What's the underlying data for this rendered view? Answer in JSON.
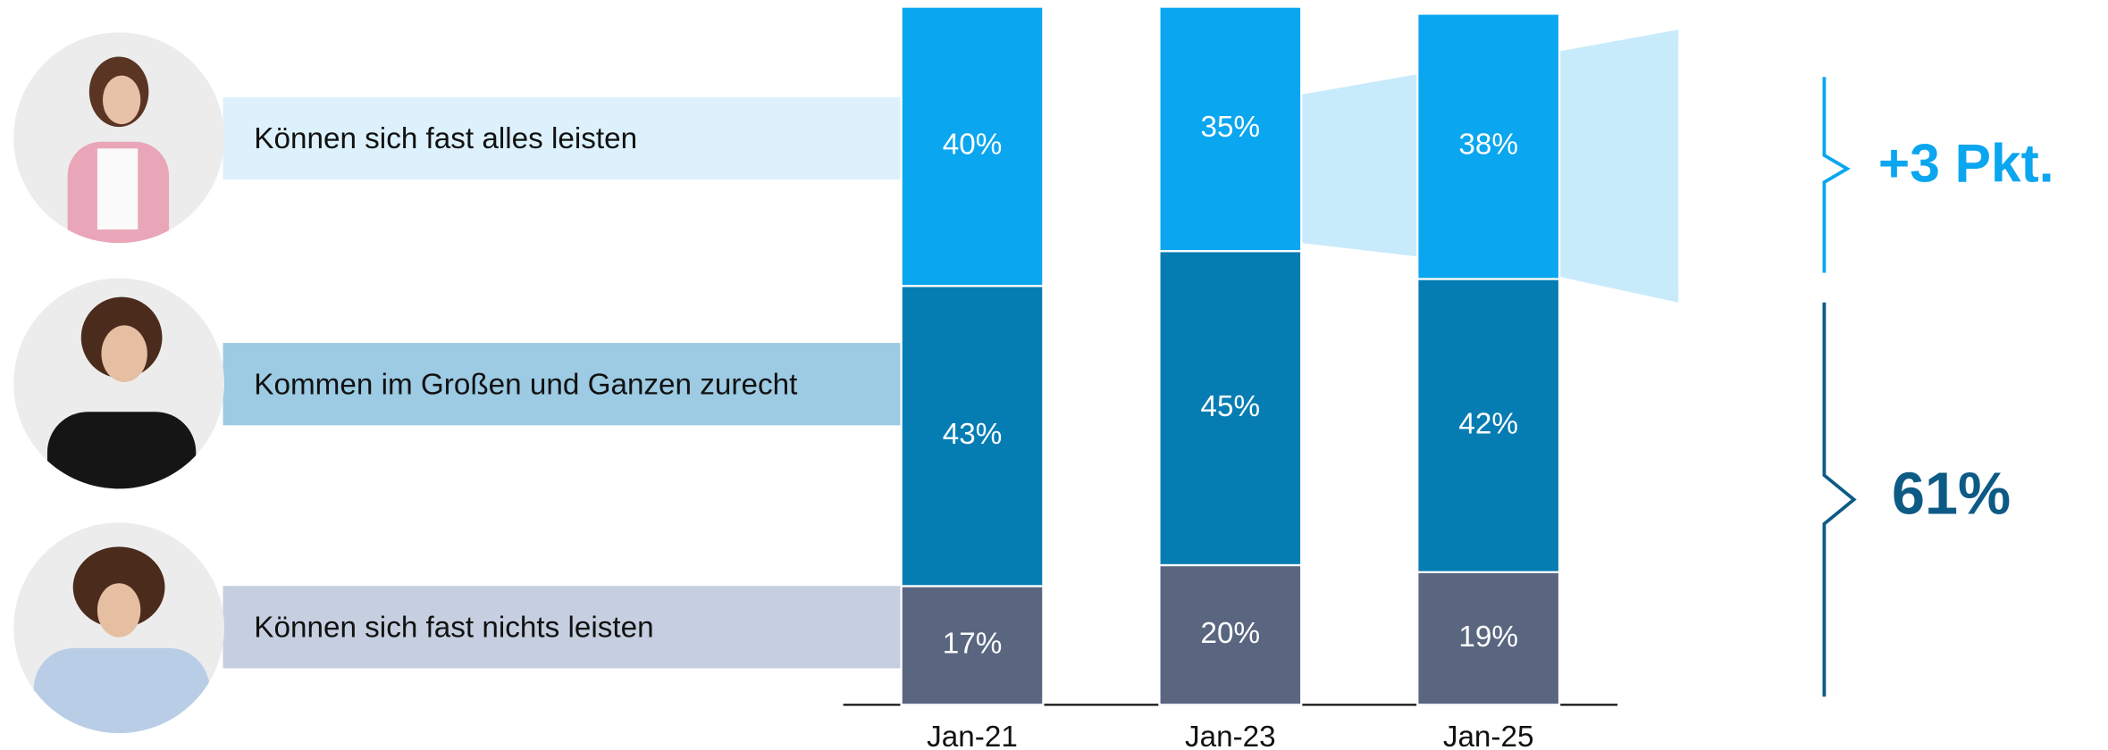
{
  "chart_data": {
    "type": "bar",
    "stacked": true,
    "categories": [
      "Jan-21",
      "Jan-23",
      "Jan-25"
    ],
    "series": [
      {
        "name": "Können sich fast nichts leisten",
        "color": "#5a6680",
        "values": [
          17,
          20,
          19
        ],
        "value_labels": [
          "17%",
          "20%",
          "19%"
        ]
      },
      {
        "name": "Kommen im Großen und Ganzen zurecht",
        "color": "#057db3",
        "values": [
          43,
          45,
          42
        ],
        "value_labels": [
          "43%",
          "45%",
          "42%"
        ]
      },
      {
        "name": "Können sich fast alles leisten",
        "color": "#0aa6ef",
        "values": [
          40,
          35,
          38
        ],
        "value_labels": [
          "40%",
          "35%",
          "38%"
        ]
      }
    ],
    "ylim": [
      0,
      100
    ],
    "annotations": [
      {
        "text": "+3 Pkt.",
        "color": "#0aa6ef"
      },
      {
        "text": "61%",
        "color": "#0d5b85"
      }
    ]
  }
}
